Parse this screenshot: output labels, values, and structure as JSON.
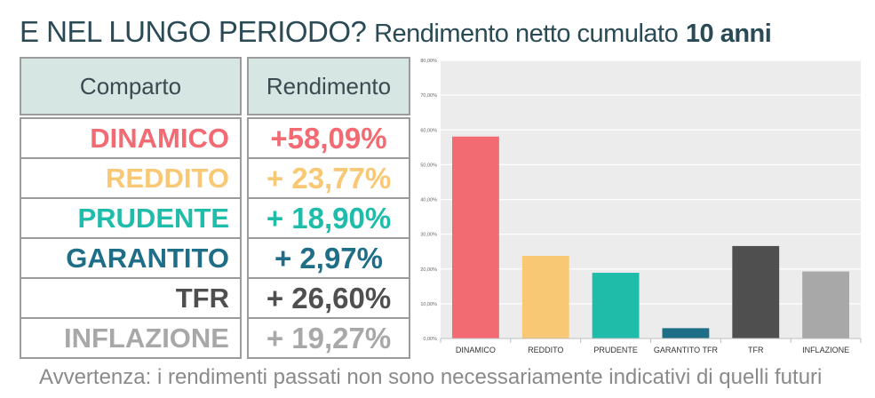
{
  "title": {
    "part1": "E NEL LUNGO PERIODO?",
    "part2": "Rendimento netto cumulato",
    "part3": "10 anni"
  },
  "table": {
    "headers": [
      "Comparto",
      "Rendimento"
    ],
    "rows": [
      {
        "name": "DINAMICO",
        "value": "+58,09%",
        "color": "#f26a72"
      },
      {
        "name": "REDDITO",
        "value": "+ 23,77%",
        "color": "#f9c874"
      },
      {
        "name": "PRUDENTE",
        "value": "+ 18,90%",
        "color": "#1fbcaa"
      },
      {
        "name": "GARANTITO",
        "value": "+ 2,97%",
        "color": "#1f6e88"
      },
      {
        "name": "TFR",
        "value": "+ 26,60%",
        "color": "#4f4f4f"
      },
      {
        "name": "INFLAZIONE",
        "value": "+ 19,27%",
        "color": "#a8a8a8"
      }
    ],
    "header_bg": "#d5e6e3"
  },
  "chart_data": {
    "type": "bar",
    "categories": [
      "DINAMICO",
      "REDDITO",
      "PRUDENTE",
      "GARANTITO TFR",
      "TFR",
      "INFLAZIONE"
    ],
    "values": [
      58.09,
      23.77,
      18.9,
      2.97,
      26.6,
      19.27
    ],
    "colors": [
      "#f26a72",
      "#f9c874",
      "#1fbcaa",
      "#1f6e88",
      "#4f4f4f",
      "#a8a8a8"
    ],
    "yticks": [
      "0,00%",
      "10,00%",
      "20,00%",
      "30,00%",
      "40,00%",
      "50,00%",
      "60,00%",
      "70,00%",
      "80,00%"
    ],
    "ylim": [
      0,
      80
    ],
    "grid": true,
    "title": "",
    "xlabel": "",
    "ylabel": "",
    "background": "#ececec"
  },
  "footer": "Avvertenza: i rendimenti passati non sono necessariamente indicativi di quelli futuri"
}
